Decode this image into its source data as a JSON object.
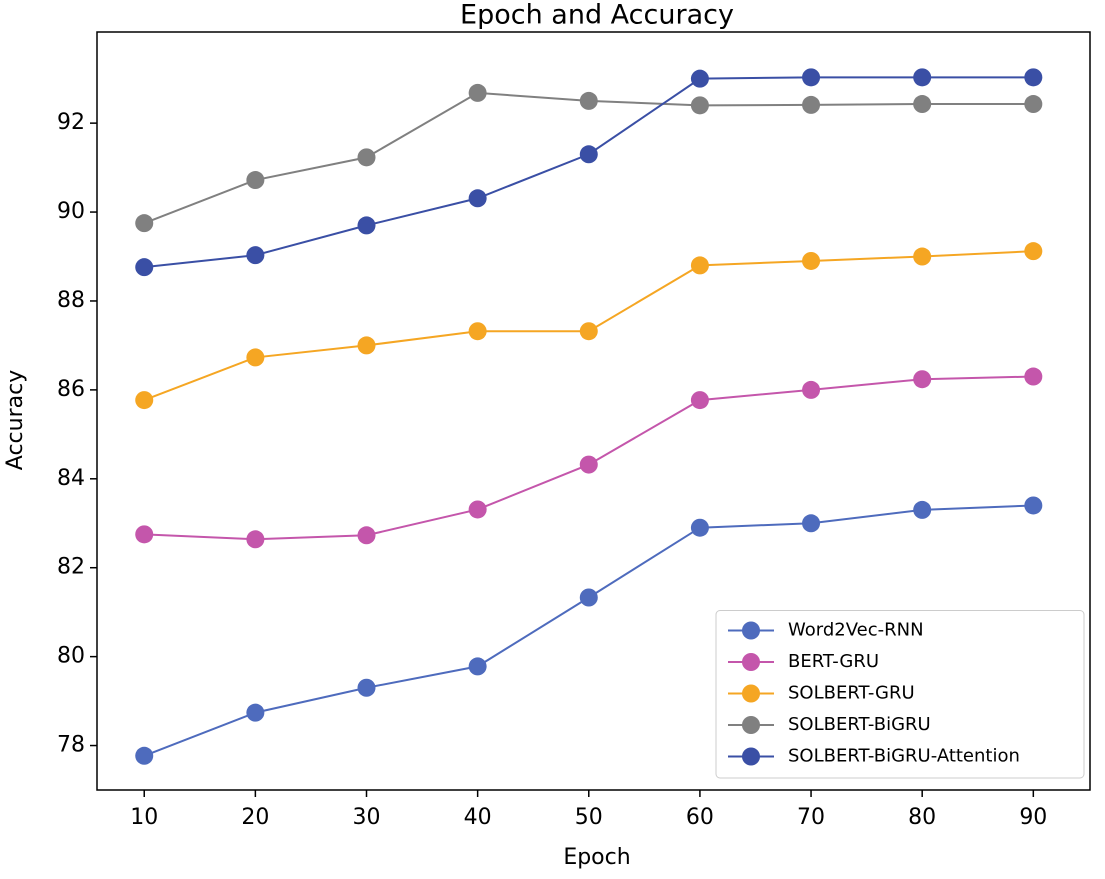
{
  "chart_data": {
    "type": "line",
    "title": "Epoch and Accuracy",
    "x_label": "Epoch",
    "y_label": "Accuracy",
    "x": [
      10,
      20,
      30,
      40,
      50,
      60,
      70,
      80,
      90
    ],
    "series": [
      {
        "name": "Word2Vec-RNN",
        "color": "#4e6bbd",
        "values": [
          77.77,
          78.74,
          79.3,
          79.78,
          81.33,
          82.9,
          83.0,
          83.3,
          83.4
        ]
      },
      {
        "name": "BERT-GRU",
        "color": "#c456ab",
        "values": [
          82.75,
          82.64,
          82.73,
          83.31,
          84.32,
          85.77,
          86.0,
          86.24,
          86.3
        ]
      },
      {
        "name": "SOLBERT-GRU",
        "color": "#f5a623",
        "values": [
          85.77,
          86.73,
          87.0,
          87.32,
          87.32,
          88.8,
          88.9,
          89.0,
          89.12
        ]
      },
      {
        "name": "SOLBERT-BiGRU",
        "color": "#808080",
        "values": [
          89.75,
          90.72,
          91.23,
          92.68,
          92.5,
          92.4,
          92.41,
          92.43,
          92.43
        ]
      },
      {
        "name": "SOLBERT-BiGRU-Attention",
        "color": "#3a4fa5",
        "values": [
          88.76,
          89.03,
          89.7,
          90.31,
          91.3,
          93.0,
          93.03,
          93.03,
          93.03
        ]
      }
    ],
    "xlim": [
      5.75,
      95.1
    ],
    "xticks": [
      10,
      20,
      30,
      40,
      50,
      60,
      70,
      80,
      90
    ],
    "ylim": [
      77,
      94.05
    ],
    "yticks": [
      78,
      80,
      82,
      84,
      86,
      88,
      90,
      92
    ],
    "legend": "lower right"
  }
}
